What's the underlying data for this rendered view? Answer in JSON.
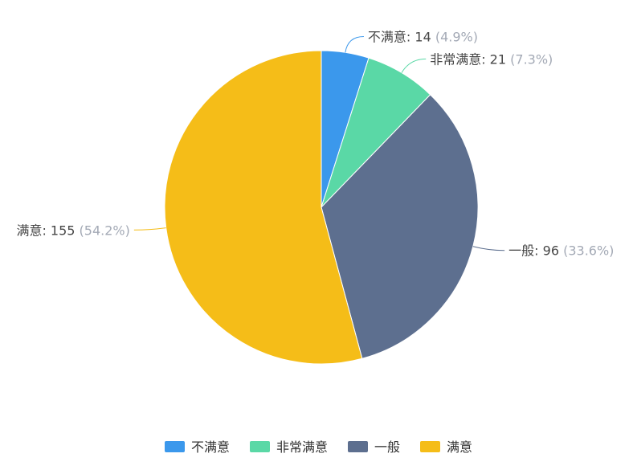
{
  "chart_data": {
    "type": "pie",
    "slices": [
      {
        "name": "不满意",
        "value": 14,
        "percent": "4.9%",
        "color": "#3b98ec"
      },
      {
        "name": "非常满意",
        "value": 21,
        "percent": "7.3%",
        "color": "#5ad8a6"
      },
      {
        "name": "一般",
        "value": 96,
        "percent": "33.6%",
        "color": "#5d6f8f"
      },
      {
        "name": "满意",
        "value": 155,
        "percent": "54.2%",
        "color": "#f5bd18"
      }
    ],
    "legend_position": "bottom-center"
  }
}
